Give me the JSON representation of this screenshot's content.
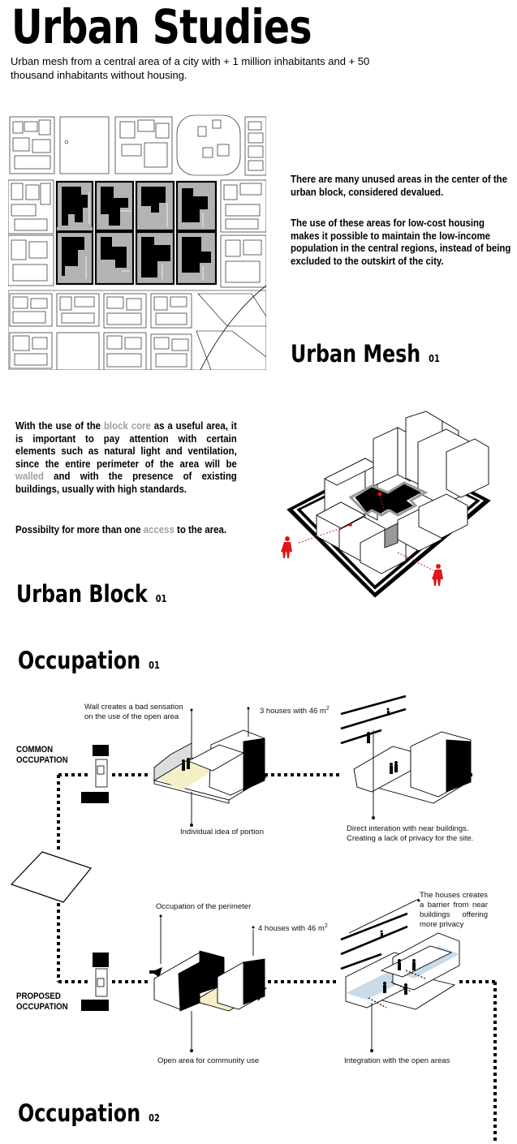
{
  "header": {
    "title": "Urban Studies",
    "subtitle": "Urban mesh from a central area of a city with + 1 million inhabitants and + 50  thousand  inhabitants without housing."
  },
  "mesh": {
    "para1": "There are many unused areas in the center of the urban block, considered devalued.",
    "para2": "The use of these areas for low-cost housing makes it possible to maintain the low-income population in the central regions, instead of being excluded to the outskirt of the city.",
    "heading": "Urban Mesh",
    "heading_num": "01"
  },
  "block": {
    "text_a": "With the use of the ",
    "text_core": "block core",
    "text_b": " as a useful area, it is important to pay attention with certain elements  such as natural light and ventilation, since the entire perimeter of the area will be ",
    "text_walled": "walled",
    "text_c": " and with the presence of existing buildings, usually with high standards.",
    "para2_a": "Possibilty for more than one ",
    "para2_access": "access",
    "para2_b": " to the area.",
    "heading": "Urban Block",
    "heading_num": "01"
  },
  "occupation1": {
    "heading": "Occupation",
    "heading_num": "01",
    "common_label_1": "COMMON",
    "common_label_2": "OCCUPATION",
    "note_wall": "Wall creates a bad sensation on the use of the open area",
    "note_houses": "3 houses with 46 m",
    "note_houses_sup": "2",
    "note_portion": "Individual idea of portion",
    "note_direct": "Direct interation with near buildings. Creating a lack of privacy for the site.",
    "proposed_label_1": "PROPOSED",
    "proposed_label_2": "OCCUPATION",
    "note_perimeter": "Occupation of the perimeter",
    "note_houses4": "4 houses with 46 m",
    "note_houses4_sup": "2",
    "note_barrier": "The houses creates a barrier from near buildings offering more privacy",
    "note_open": "Open area for community use",
    "note_integration": "Integration with the open areas"
  },
  "occupation2": {
    "heading": "Occupation",
    "heading_num": "02"
  },
  "colors": {
    "accent_red": "#e0161b",
    "grey_text": "#a0a0a0",
    "sand": "#f5efc6",
    "water": "#c9dbe8"
  }
}
